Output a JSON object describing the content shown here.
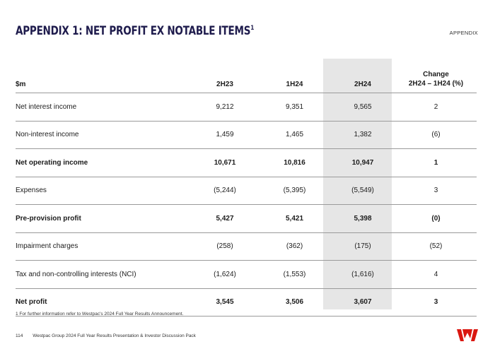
{
  "header": {
    "title": "APPENDIX 1: NET PROFIT EX NOTABLE ITEMS",
    "title_sup": "1",
    "section": "APPENDIX"
  },
  "table": {
    "headers": [
      "$m",
      "2H23",
      "1H24",
      "2H24",
      "Change",
      "2H24 – 1H24 (%)"
    ],
    "rows": [
      {
        "label": "Net interest income",
        "v1": "9,212",
        "v2": "9,351",
        "v3": "9,565",
        "change": "2"
      },
      {
        "label": "Non-interest income",
        "v1": "1,459",
        "v2": "1,465",
        "v3": "1,382",
        "change": "(6)"
      },
      {
        "label": "Net operating income",
        "v1": "10,671",
        "v2": "10,816",
        "v3": "10,947",
        "change": "1"
      },
      {
        "label": "Expenses",
        "v1": "(5,244)",
        "v2": "(5,395)",
        "v3": "(5,549)",
        "change": "3"
      },
      {
        "label": "Pre-provision profit",
        "v1": "5,427",
        "v2": "5,421",
        "v3": "5,398",
        "change": "(0)"
      },
      {
        "label": "Impairment charges",
        "v1": "(258)",
        "v2": "(362)",
        "v3": "(175)",
        "change": "(52)"
      },
      {
        "label": "Tax and non-controlling interests (NCI)",
        "v1": "(1,624)",
        "v2": "(1,553)",
        "v3": "(1,616)",
        "change": "4"
      },
      {
        "label": "Net profit",
        "v1": "3,545",
        "v2": "3,506",
        "v3": "3,607",
        "change": "3"
      }
    ]
  },
  "footnote": "1 For further information refer to Westpac's 2024 Full Year Results Announcement.",
  "footer": {
    "page": "114",
    "text": "Westpac Group 2024 Full Year Results Presentation & Investor Discussion Pack"
  },
  "colors": {
    "title": "#1f1c4d",
    "brand_red": "#da1710",
    "highlight": "#e6e6e6"
  }
}
